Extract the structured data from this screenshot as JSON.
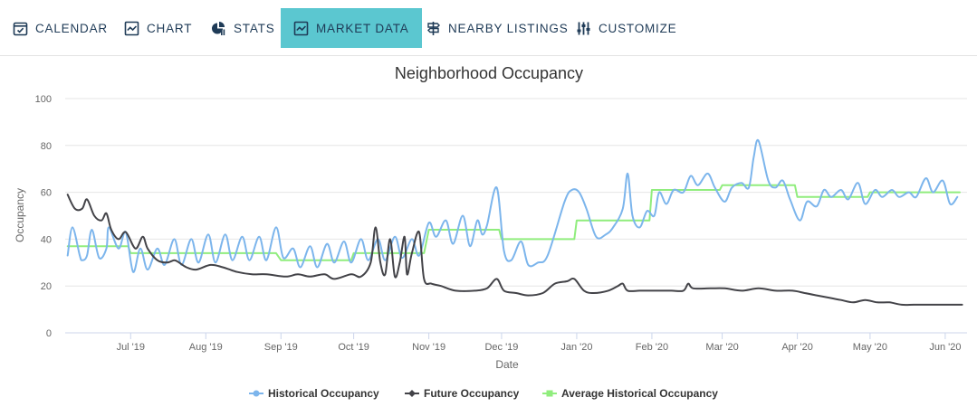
{
  "tabs": [
    {
      "label": "CALENDAR",
      "icon": "calendar-check-icon",
      "active": false
    },
    {
      "label": "CHART",
      "icon": "line-chart-icon",
      "active": false
    },
    {
      "label": "STATS",
      "icon": "pie-chart-icon",
      "active": false
    },
    {
      "label": "MARKET DATA",
      "icon": "area-chart-icon",
      "active": true
    },
    {
      "label": "NEARBY LISTINGS",
      "icon": "signpost-icon",
      "active": false
    },
    {
      "label": "CUSTOMIZE",
      "icon": "sliders-icon",
      "active": false
    }
  ],
  "colors": {
    "accent": "#5bc7d0",
    "tab_text": "#1f3b57",
    "historical": "#7cb5ec",
    "future": "#434348",
    "average": "#90ed7d"
  },
  "chart_data": {
    "type": "line",
    "title": "Neighborhood Occupancy",
    "xlabel": "Date",
    "ylabel": "Occupancy",
    "ylim": [
      0,
      100
    ],
    "yticks": [
      0,
      20,
      40,
      60,
      80,
      100
    ],
    "xlim": [
      "2019-06-04",
      "2020-06-10"
    ],
    "xticks": [
      {
        "label": "Jul '19",
        "date": "2019-07-01"
      },
      {
        "label": "Aug '19",
        "date": "2019-08-01"
      },
      {
        "label": "Sep '19",
        "date": "2019-09-01"
      },
      {
        "label": "Oct '19",
        "date": "2019-10-01"
      },
      {
        "label": "Nov '19",
        "date": "2019-11-01"
      },
      {
        "label": "Dec '19",
        "date": "2019-12-01"
      },
      {
        "label": "Jan '20",
        "date": "2020-01-01"
      },
      {
        "label": "Feb '20",
        "date": "2020-02-01"
      },
      {
        "label": "Mar '20",
        "date": "2020-03-01"
      },
      {
        "label": "Apr '20",
        "date": "2020-04-01"
      },
      {
        "label": "May '20",
        "date": "2020-05-01"
      },
      {
        "label": "Jun '20",
        "date": "2020-06-01"
      }
    ],
    "grid": true,
    "legend_position": "bottom-center",
    "series": [
      {
        "name": "Historical Occupancy",
        "color": "#7cb5ec",
        "marker": "circle",
        "points": [
          [
            "2019-06-05",
            33
          ],
          [
            "2019-06-07",
            45
          ],
          [
            "2019-06-10",
            33
          ],
          [
            "2019-06-11",
            31
          ],
          [
            "2019-06-13",
            33
          ],
          [
            "2019-06-15",
            44
          ],
          [
            "2019-06-18",
            32
          ],
          [
            "2019-06-21",
            36
          ],
          [
            "2019-06-22",
            45
          ],
          [
            "2019-06-26",
            36
          ],
          [
            "2019-06-29",
            43
          ],
          [
            "2019-07-02",
            26
          ],
          [
            "2019-07-05",
            36
          ],
          [
            "2019-07-08",
            27
          ],
          [
            "2019-07-12",
            36
          ],
          [
            "2019-07-15",
            29
          ],
          [
            "2019-07-19",
            40
          ],
          [
            "2019-07-22",
            29
          ],
          [
            "2019-07-26",
            40
          ],
          [
            "2019-07-29",
            30
          ],
          [
            "2019-08-02",
            42
          ],
          [
            "2019-08-05",
            30
          ],
          [
            "2019-08-09",
            42
          ],
          [
            "2019-08-12",
            31
          ],
          [
            "2019-08-16",
            41
          ],
          [
            "2019-08-19",
            31
          ],
          [
            "2019-08-23",
            41
          ],
          [
            "2019-08-26",
            31
          ],
          [
            "2019-08-30",
            45
          ],
          [
            "2019-09-02",
            32
          ],
          [
            "2019-09-06",
            36
          ],
          [
            "2019-09-09",
            28
          ],
          [
            "2019-09-13",
            37
          ],
          [
            "2019-09-16",
            28
          ],
          [
            "2019-09-20",
            38
          ],
          [
            "2019-09-23",
            30
          ],
          [
            "2019-09-27",
            39
          ],
          [
            "2019-09-30",
            30
          ],
          [
            "2019-10-04",
            40
          ],
          [
            "2019-10-07",
            31
          ],
          [
            "2019-10-11",
            40
          ],
          [
            "2019-10-14",
            31
          ],
          [
            "2019-10-18",
            41
          ],
          [
            "2019-10-21",
            32
          ],
          [
            "2019-10-25",
            40
          ],
          [
            "2019-10-28",
            33
          ],
          [
            "2019-11-01",
            47
          ],
          [
            "2019-11-04",
            41
          ],
          [
            "2019-11-08",
            48
          ],
          [
            "2019-11-11",
            38
          ],
          [
            "2019-11-15",
            50
          ],
          [
            "2019-11-18",
            37
          ],
          [
            "2019-11-21",
            48
          ],
          [
            "2019-11-23",
            42
          ],
          [
            "2019-11-25",
            46
          ],
          [
            "2019-11-29",
            62
          ],
          [
            "2019-12-02",
            35
          ],
          [
            "2019-12-05",
            31
          ],
          [
            "2019-12-09",
            39
          ],
          [
            "2019-12-12",
            29
          ],
          [
            "2019-12-16",
            30
          ],
          [
            "2019-12-20",
            33
          ],
          [
            "2019-12-27",
            56
          ],
          [
            "2019-12-30",
            61
          ],
          [
            "2020-01-02",
            60
          ],
          [
            "2020-01-05",
            53
          ],
          [
            "2020-01-09",
            41
          ],
          [
            "2020-01-13",
            42
          ],
          [
            "2020-01-16",
            45
          ],
          [
            "2020-01-20",
            53
          ],
          [
            "2020-01-22",
            68
          ],
          [
            "2020-01-24",
            50
          ],
          [
            "2020-01-27",
            45
          ],
          [
            "2020-01-30",
            52
          ],
          [
            "2020-02-02",
            50
          ],
          [
            "2020-02-04",
            60
          ],
          [
            "2020-02-07",
            55
          ],
          [
            "2020-02-10",
            61
          ],
          [
            "2020-02-14",
            60
          ],
          [
            "2020-02-17",
            67
          ],
          [
            "2020-02-20",
            63
          ],
          [
            "2020-02-24",
            68
          ],
          [
            "2020-02-27",
            62
          ],
          [
            "2020-03-02",
            56
          ],
          [
            "2020-03-05",
            62
          ],
          [
            "2020-03-09",
            64
          ],
          [
            "2020-03-12",
            62
          ],
          [
            "2020-03-14",
            75
          ],
          [
            "2020-03-16",
            82
          ],
          [
            "2020-03-20",
            65
          ],
          [
            "2020-03-23",
            62
          ],
          [
            "2020-03-26",
            65
          ],
          [
            "2020-03-29",
            57
          ],
          [
            "2020-04-02",
            48
          ],
          [
            "2020-04-05",
            56
          ],
          [
            "2020-04-09",
            54
          ],
          [
            "2020-04-12",
            61
          ],
          [
            "2020-04-15",
            58
          ],
          [
            "2020-04-19",
            61
          ],
          [
            "2020-04-22",
            57
          ],
          [
            "2020-04-26",
            64
          ],
          [
            "2020-04-29",
            55
          ],
          [
            "2020-05-03",
            61
          ],
          [
            "2020-05-06",
            58
          ],
          [
            "2020-05-10",
            61
          ],
          [
            "2020-05-13",
            58
          ],
          [
            "2020-05-17",
            60
          ],
          [
            "2020-05-20",
            58
          ],
          [
            "2020-05-24",
            66
          ],
          [
            "2020-05-27",
            60
          ],
          [
            "2020-05-31",
            65
          ],
          [
            "2020-06-03",
            55
          ],
          [
            "2020-06-06",
            58
          ]
        ]
      },
      {
        "name": "Future Occupancy",
        "color": "#434348",
        "marker": "diamond",
        "points": [
          [
            "2019-06-05",
            59
          ],
          [
            "2019-06-08",
            53
          ],
          [
            "2019-06-11",
            53
          ],
          [
            "2019-06-13",
            57
          ],
          [
            "2019-06-16",
            50
          ],
          [
            "2019-06-19",
            48
          ],
          [
            "2019-06-21",
            51
          ],
          [
            "2019-06-23",
            44
          ],
          [
            "2019-06-26",
            40
          ],
          [
            "2019-06-29",
            43
          ],
          [
            "2019-07-03",
            36
          ],
          [
            "2019-07-06",
            41
          ],
          [
            "2019-07-08",
            36
          ],
          [
            "2019-07-12",
            31
          ],
          [
            "2019-07-16",
            30
          ],
          [
            "2019-07-19",
            31
          ],
          [
            "2019-07-21",
            30
          ],
          [
            "2019-07-24",
            28
          ],
          [
            "2019-07-28",
            27
          ],
          [
            "2019-08-03",
            29
          ],
          [
            "2019-08-08",
            28
          ],
          [
            "2019-08-14",
            26
          ],
          [
            "2019-08-20",
            25
          ],
          [
            "2019-08-26",
            25
          ],
          [
            "2019-09-03",
            24
          ],
          [
            "2019-09-08",
            25
          ],
          [
            "2019-09-13",
            24
          ],
          [
            "2019-09-19",
            25
          ],
          [
            "2019-09-23",
            23
          ],
          [
            "2019-09-30",
            25
          ],
          [
            "2019-10-04",
            24
          ],
          [
            "2019-10-08",
            30
          ],
          [
            "2019-10-10",
            45
          ],
          [
            "2019-10-12",
            30
          ],
          [
            "2019-10-14",
            25
          ],
          [
            "2019-10-16",
            40
          ],
          [
            "2019-10-18",
            24
          ],
          [
            "2019-10-20",
            30
          ],
          [
            "2019-10-22",
            41
          ],
          [
            "2019-10-23",
            25
          ],
          [
            "2019-10-25",
            34
          ],
          [
            "2019-10-28",
            43
          ],
          [
            "2019-10-30",
            23
          ],
          [
            "2019-11-02",
            21
          ],
          [
            "2019-11-06",
            20
          ],
          [
            "2019-11-12",
            18
          ],
          [
            "2019-11-20",
            18
          ],
          [
            "2019-11-25",
            19
          ],
          [
            "2019-11-29",
            23
          ],
          [
            "2019-12-02",
            18
          ],
          [
            "2019-12-07",
            17
          ],
          [
            "2019-12-12",
            16
          ],
          [
            "2019-12-18",
            17
          ],
          [
            "2019-12-23",
            21
          ],
          [
            "2019-12-28",
            22
          ],
          [
            "2019-12-31",
            23
          ],
          [
            "2020-01-04",
            18
          ],
          [
            "2020-01-08",
            17
          ],
          [
            "2020-01-14",
            18
          ],
          [
            "2020-01-18",
            20
          ],
          [
            "2020-01-20",
            21
          ],
          [
            "2020-01-22",
            18
          ],
          [
            "2020-01-27",
            18
          ],
          [
            "2020-02-02",
            18
          ],
          [
            "2020-02-09",
            18
          ],
          [
            "2020-02-14",
            18
          ],
          [
            "2020-02-16",
            21
          ],
          [
            "2020-02-18",
            19
          ],
          [
            "2020-02-25",
            19
          ],
          [
            "2020-03-02",
            19
          ],
          [
            "2020-03-09",
            18
          ],
          [
            "2020-03-16",
            19
          ],
          [
            "2020-03-23",
            18
          ],
          [
            "2020-03-30",
            18
          ],
          [
            "2020-04-04",
            17
          ],
          [
            "2020-04-09",
            16
          ],
          [
            "2020-04-14",
            15
          ],
          [
            "2020-04-19",
            14
          ],
          [
            "2020-04-24",
            13
          ],
          [
            "2020-04-29",
            14
          ],
          [
            "2020-05-04",
            13
          ],
          [
            "2020-05-09",
            13
          ],
          [
            "2020-05-14",
            12
          ],
          [
            "2020-05-19",
            12
          ],
          [
            "2020-05-24",
            12
          ],
          [
            "2020-05-29",
            12
          ],
          [
            "2020-06-03",
            12
          ],
          [
            "2020-06-08",
            12
          ]
        ]
      },
      {
        "name": "Average Historical Occupancy",
        "color": "#90ed7d",
        "marker": "square",
        "step": true,
        "points": [
          [
            "2019-06-05",
            37
          ],
          [
            "2019-06-30",
            37
          ],
          [
            "2019-07-01",
            34
          ],
          [
            "2019-08-30",
            34
          ],
          [
            "2019-09-01",
            31
          ],
          [
            "2019-09-30",
            31
          ],
          [
            "2019-10-01",
            34
          ],
          [
            "2019-10-30",
            34
          ],
          [
            "2019-11-01",
            44
          ],
          [
            "2019-11-30",
            44
          ],
          [
            "2019-12-01",
            40
          ],
          [
            "2019-12-31",
            40
          ],
          [
            "2020-01-01",
            48
          ],
          [
            "2020-01-31",
            48
          ],
          [
            "2020-02-01",
            61
          ],
          [
            "2020-02-29",
            61
          ],
          [
            "2020-03-01",
            63
          ],
          [
            "2020-03-31",
            63
          ],
          [
            "2020-04-01",
            58
          ],
          [
            "2020-04-30",
            58
          ],
          [
            "2020-05-01",
            60
          ],
          [
            "2020-06-07",
            60
          ]
        ]
      }
    ]
  }
}
